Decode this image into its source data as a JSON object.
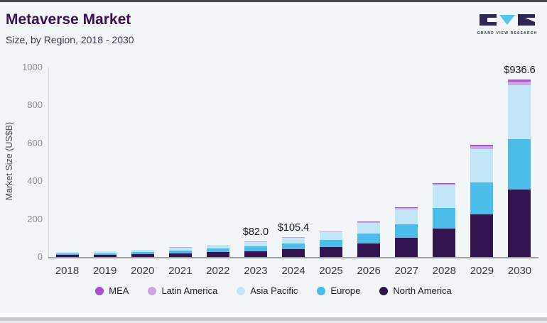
{
  "header": {
    "title": "Metaverse Market",
    "subtitle": "Size, by Region, 2018 - 2030"
  },
  "logo": {
    "text": "GRAND VIEW RESEARCH",
    "dark_color": "#322658",
    "triangle_color": "#56c6ec"
  },
  "chart_data": {
    "type": "bar",
    "stacked": true,
    "title": "Metaverse Market Size, by Region, 2018 - 2030",
    "xlabel": "",
    "ylabel": "Market Size (US$B)",
    "ylim": [
      0,
      1000
    ],
    "yticks": [
      0,
      200,
      400,
      600,
      800,
      1000
    ],
    "grid": false,
    "legend_position": "bottom",
    "categories": [
      "2018",
      "2019",
      "2020",
      "2021",
      "2022",
      "2023",
      "2024",
      "2025",
      "2026",
      "2027",
      "2028",
      "2029",
      "2030"
    ],
    "series": [
      {
        "name": "North America",
        "color": "#321450",
        "values": [
          9.9,
          11.6,
          14.6,
          19.8,
          25.0,
          31.2,
          40.1,
          52.0,
          71.0,
          99.4,
          148.4,
          224.6,
          356.4
        ]
      },
      {
        "name": "Europe",
        "color": "#4cbde9",
        "values": [
          7.4,
          8.7,
          11.0,
          14.8,
          18.6,
          23.3,
          30.0,
          38.9,
          53.1,
          74.3,
          111.0,
          168.0,
          266.5
        ]
      },
      {
        "name": "Asia Pacific",
        "color": "#c2e6f8",
        "values": [
          7.8,
          9.2,
          11.6,
          15.7,
          19.8,
          24.7,
          31.8,
          41.2,
          56.3,
          78.8,
          117.7,
          178.1,
          282.5
        ]
      },
      {
        "name": "Latin America",
        "color": "#cda4e4",
        "values": [
          0.6,
          0.7,
          0.9,
          1.2,
          1.5,
          1.9,
          2.4,
          3.1,
          4.3,
          6.0,
          8.9,
          13.5,
          21.4
        ]
      },
      {
        "name": "MEA",
        "color": "#aa4fd0",
        "values": [
          0.3,
          0.3,
          0.4,
          0.5,
          0.6,
          0.9,
          1.1,
          1.4,
          1.9,
          2.7,
          4.0,
          6.1,
          9.8
        ]
      }
    ],
    "totals": [
      26.0,
      30.5,
      38.5,
      52.0,
      65.5,
      82.0,
      105.4,
      136.6,
      186.6,
      261.2,
      390.0,
      590.3,
      936.6
    ],
    "annotations": {
      "2023": "$82.0",
      "2024": "$105.4",
      "2030": "$936.6"
    },
    "legend": [
      {
        "label": "MEA",
        "color": "#aa4fd0"
      },
      {
        "label": "Latin America",
        "color": "#cda4e4"
      },
      {
        "label": "Asia Pacific",
        "color": "#c2e6f8"
      },
      {
        "label": "Europe",
        "color": "#4cbde9"
      },
      {
        "label": "North America",
        "color": "#321450"
      }
    ]
  }
}
